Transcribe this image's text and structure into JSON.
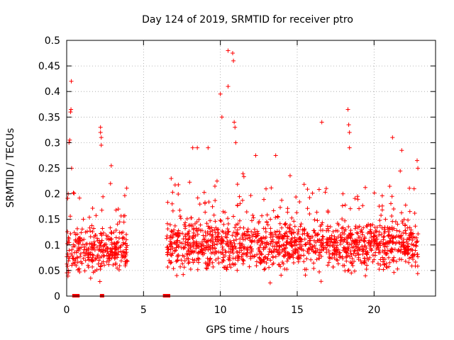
{
  "chart_data": {
    "type": "scatter",
    "title": "Day 124 of 2019, SRMTID for receiver ptro",
    "xlabel": "GPS time / hours",
    "ylabel": "SRMTID / TECUs",
    "xlim": [
      0,
      24
    ],
    "ylim": [
      0,
      0.5
    ],
    "grid": true,
    "marker": "+",
    "marker_color": "#ff0000",
    "x_ticks": [
      0,
      5,
      10,
      15,
      20
    ],
    "x_tick_labels": [
      "0",
      "5",
      "10",
      "15",
      "20"
    ],
    "y_ticks": [
      0,
      0.05,
      0.1,
      0.15,
      0.2,
      0.25,
      0.3,
      0.35,
      0.4,
      0.45,
      0.5
    ],
    "y_tick_labels": [
      "0",
      "0.05",
      "0.1",
      "0.15",
      "0.2",
      "0.25",
      "0.3",
      "0.35",
      "0.4",
      "0.45",
      "0.5"
    ],
    "dense_bands": [
      {
        "x_start": 0.0,
        "x_end": 4.0,
        "n": 320,
        "center": 0.09,
        "spread": 0.04
      },
      {
        "x_start": 6.5,
        "x_end": 22.9,
        "n": 1400,
        "center": 0.1,
        "spread": 0.045
      }
    ],
    "highlight_points": [
      {
        "x": 0.1,
        "y": 0.2
      },
      {
        "x": 0.15,
        "y": 0.3
      },
      {
        "x": 0.2,
        "y": 0.305
      },
      {
        "x": 0.25,
        "y": 0.36
      },
      {
        "x": 0.28,
        "y": 0.365
      },
      {
        "x": 0.3,
        "y": 0.42
      },
      {
        "x": 0.32,
        "y": 0.25
      },
      {
        "x": 2.2,
        "y": 0.33
      },
      {
        "x": 2.2,
        "y": 0.32
      },
      {
        "x": 2.25,
        "y": 0.31
      },
      {
        "x": 2.25,
        "y": 0.295
      },
      {
        "x": 2.9,
        "y": 0.255
      },
      {
        "x": 2.85,
        "y": 0.22
      },
      {
        "x": 6.8,
        "y": 0.23
      },
      {
        "x": 8.2,
        "y": 0.29
      },
      {
        "x": 8.5,
        "y": 0.29
      },
      {
        "x": 9.2,
        "y": 0.29
      },
      {
        "x": 10.0,
        "y": 0.395
      },
      {
        "x": 10.1,
        "y": 0.35
      },
      {
        "x": 10.5,
        "y": 0.48
      },
      {
        "x": 10.5,
        "y": 0.41
      },
      {
        "x": 10.8,
        "y": 0.475
      },
      {
        "x": 10.85,
        "y": 0.46
      },
      {
        "x": 10.9,
        "y": 0.34
      },
      {
        "x": 10.95,
        "y": 0.33
      },
      {
        "x": 11.0,
        "y": 0.3
      },
      {
        "x": 12.3,
        "y": 0.275
      },
      {
        "x": 13.6,
        "y": 0.275
      },
      {
        "x": 16.6,
        "y": 0.34
      },
      {
        "x": 18.3,
        "y": 0.365
      },
      {
        "x": 18.35,
        "y": 0.335
      },
      {
        "x": 18.4,
        "y": 0.32
      },
      {
        "x": 18.4,
        "y": 0.29
      },
      {
        "x": 21.2,
        "y": 0.31
      },
      {
        "x": 21.8,
        "y": 0.285
      },
      {
        "x": 22.8,
        "y": 0.265
      },
      {
        "x": 22.85,
        "y": 0.25
      }
    ],
    "zero_markers": [
      0.5,
      0.6,
      0.7,
      2.3,
      6.4,
      6.6
    ]
  }
}
